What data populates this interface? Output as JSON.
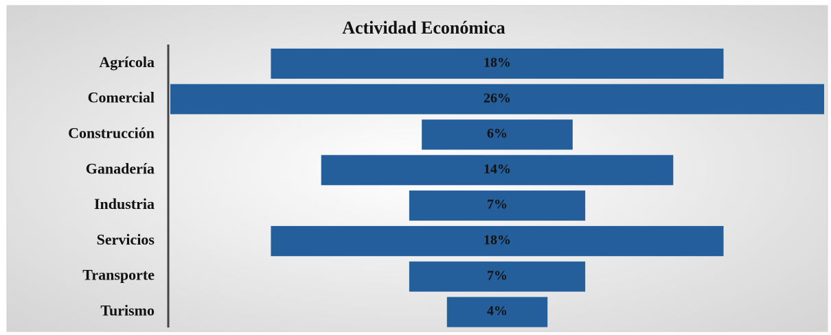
{
  "chart_data": {
    "type": "funnel",
    "title": "Actividad Económica",
    "categories": [
      "Agrícola",
      "Comercial",
      "Construcción",
      "Ganadería",
      "Industria",
      "Servicios",
      "Transporte",
      "Turismo"
    ],
    "values": [
      18,
      26,
      6,
      14,
      7,
      18,
      7,
      4
    ],
    "value_labels": [
      "18%",
      "26%",
      "6%",
      "14%",
      "7%",
      "18%",
      "7%",
      "4%"
    ],
    "color": "#245f9b"
  }
}
